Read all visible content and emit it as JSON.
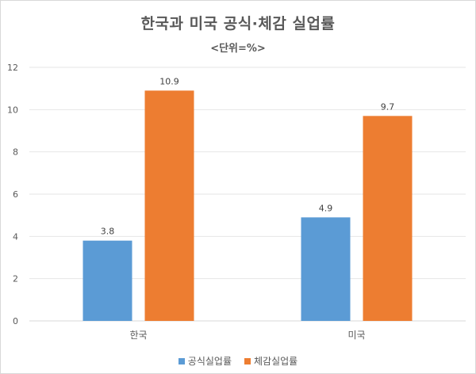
{
  "chart_data": {
    "type": "bar",
    "title": "한국과 미국 공식·체감 실업률",
    "subtitle": "<단위=%>",
    "categories": [
      "한국",
      "미국"
    ],
    "series": [
      {
        "name": "공식실업률",
        "values": [
          3.8,
          4.9
        ],
        "color": "#5b9bd5"
      },
      {
        "name": "체감실업률",
        "values": [
          10.9,
          9.7
        ],
        "color": "#ed7d31"
      }
    ],
    "ylim": [
      0,
      12
    ],
    "yticks": [
      "0",
      "2",
      "4",
      "6",
      "8",
      "10",
      "12"
    ],
    "grid": true,
    "legend": "bottom"
  }
}
